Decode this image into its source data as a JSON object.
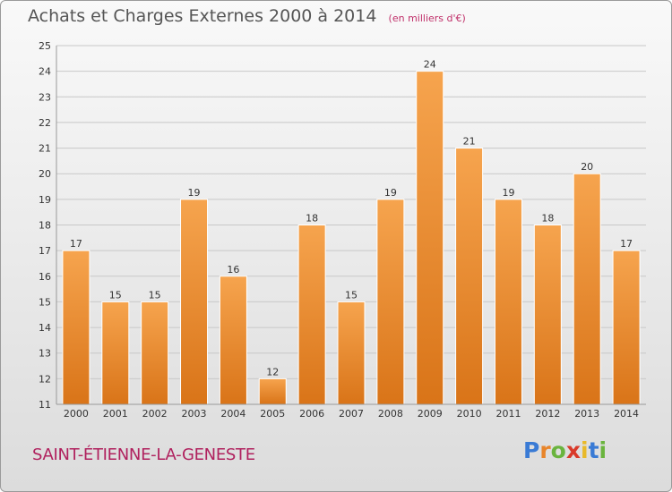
{
  "title": "Achats et Charges Externes 2000 à 2014",
  "unit": "(en milliers d'€)",
  "commune": "SAINT-ÉTIENNE-LA-GENESTE",
  "logo": {
    "text": "Proxiti",
    "letter_colors": [
      "#3a7bd5",
      "#e8852a",
      "#6ab43e",
      "#d93a2a",
      "#e8b92a",
      "#3a7bd5",
      "#6ab43e"
    ]
  },
  "colors": {
    "bar_top": "#f6a44e",
    "bar_bottom": "#d97418",
    "grid": "#c8c8c8",
    "axis_text": "#333333"
  },
  "chart_data": {
    "type": "bar",
    "title": "Achats et Charges Externes 2000 à 2014",
    "categories": [
      "2000",
      "2001",
      "2002",
      "2003",
      "2004",
      "2005",
      "2006",
      "2007",
      "2008",
      "2009",
      "2010",
      "2011",
      "2012",
      "2013",
      "2014"
    ],
    "values": [
      17,
      15,
      15,
      19,
      16,
      12,
      18,
      15,
      19,
      24,
      21,
      19,
      18,
      20,
      17
    ],
    "ylim": [
      11,
      25
    ],
    "yticks": [
      11,
      12,
      13,
      14,
      15,
      16,
      17,
      18,
      19,
      20,
      21,
      22,
      23,
      24,
      25
    ],
    "grid": true,
    "data_labels": true
  }
}
